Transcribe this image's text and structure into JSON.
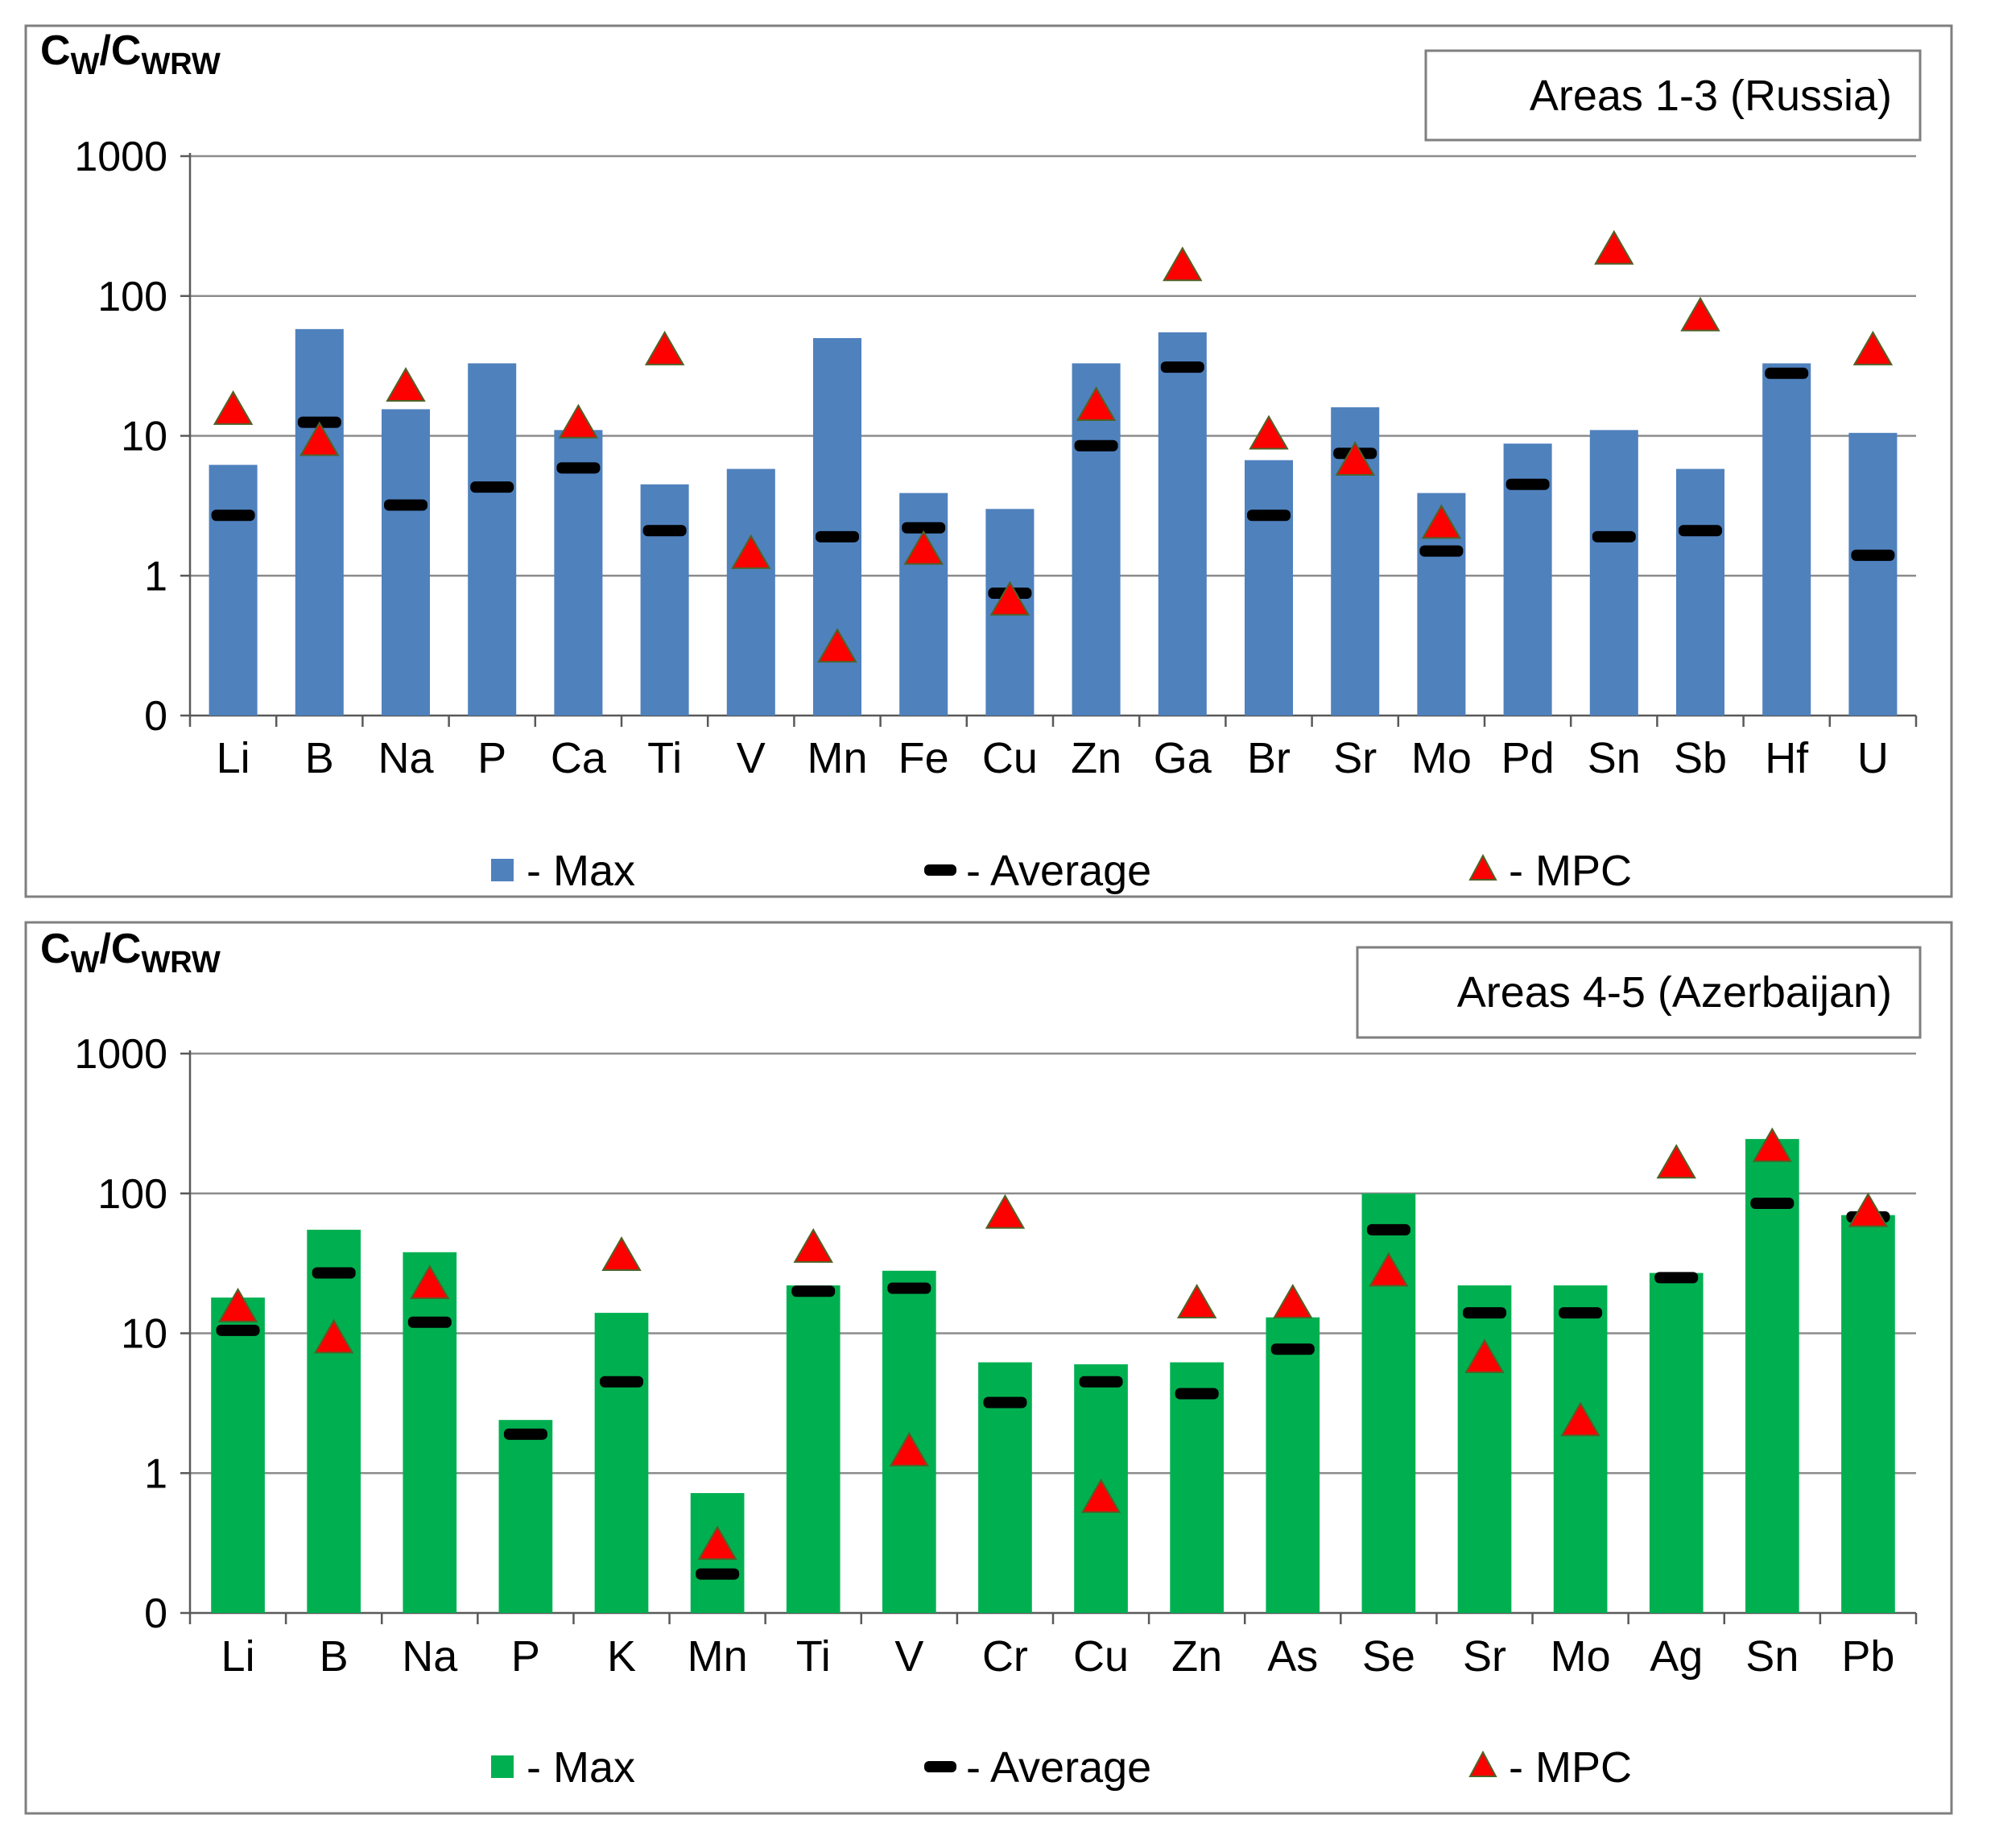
{
  "chart_data": [
    {
      "type": "bar",
      "title": "Areas 1-3 (Russia)",
      "ylabel_main": "C",
      "ylabel_sub1": "W",
      "ylabel_sep": "/C",
      "ylabel_sub2": "WRW",
      "yscale": "log",
      "ylim": [
        0.1,
        1000
      ],
      "yticks": [
        {
          "value": 1000,
          "label": "1000"
        },
        {
          "value": 100,
          "label": "100"
        },
        {
          "value": 10,
          "label": "10"
        },
        {
          "value": 1,
          "label": "1"
        },
        {
          "value": 0.1,
          "label": "0"
        }
      ],
      "categories": [
        "Li",
        "B",
        "Na",
        "P",
        "Ca",
        "Ti",
        "V",
        "Mn",
        "Fe",
        "Cu",
        "Zn",
        "Ga",
        "Br",
        "Sr",
        "Mo",
        "Pd",
        "Sn",
        "Sb",
        "Hf",
        "U"
      ],
      "series": [
        {
          "name": "Max",
          "kind": "bar",
          "color": "#4f81bd",
          "values": [
            6.2,
            58,
            15.5,
            33,
            11,
            4.5,
            5.8,
            50,
            3.9,
            3.0,
            33,
            55,
            6.7,
            16,
            3.9,
            8.8,
            11,
            5.8,
            33,
            10.5
          ]
        },
        {
          "name": "Average",
          "kind": "dash",
          "color": "#000000",
          "values": [
            2.7,
            12.5,
            3.2,
            4.3,
            5.9,
            2.1,
            null,
            1.9,
            2.2,
            0.75,
            8.5,
            31,
            2.7,
            7.5,
            1.5,
            4.5,
            1.9,
            2.1,
            28,
            1.4
          ]
        },
        {
          "name": "MPC",
          "kind": "triangle",
          "color": "#ff0000",
          "values": [
            15,
            9,
            22,
            null,
            12,
            40,
            1.4,
            0.3,
            1.5,
            0.65,
            16,
            160,
            10,
            6.5,
            2.3,
            null,
            210,
            70,
            null,
            40
          ]
        }
      ],
      "legend": [
        {
          "marker": "square",
          "label": "- Max"
        },
        {
          "marker": "dash",
          "label": "- Average"
        },
        {
          "marker": "triangle",
          "label": "- MPC"
        }
      ]
    },
    {
      "type": "bar",
      "title": "Areas 4-5 (Azerbaijan)",
      "ylabel_main": "C",
      "ylabel_sub1": "W",
      "ylabel_sep": "/C",
      "ylabel_sub2": "WRW",
      "yscale": "log",
      "ylim": [
        0.1,
        1000
      ],
      "yticks": [
        {
          "value": 1000,
          "label": "1000"
        },
        {
          "value": 100,
          "label": "100"
        },
        {
          "value": 10,
          "label": "10"
        },
        {
          "value": 1,
          "label": "1"
        },
        {
          "value": 0.1,
          "label": "0"
        }
      ],
      "categories": [
        "Li",
        "B",
        "Na",
        "P",
        "K",
        "Mn",
        "Ti",
        "V",
        "Cr",
        "Cu",
        "Zn",
        "As",
        "Se",
        "Sr",
        "Mo",
        "Ag",
        "Sn",
        "Pb"
      ],
      "series": [
        {
          "name": "Max",
          "kind": "bar",
          "color": "#00b050",
          "values": [
            18,
            55,
            38,
            2.4,
            14,
            0.72,
            22,
            28,
            6.2,
            6.0,
            6.2,
            13,
            100,
            22,
            22,
            27,
            245,
            70
          ]
        },
        {
          "name": "Average",
          "kind": "dash",
          "color": "#000000",
          "values": [
            10.5,
            27,
            12,
            1.9,
            4.5,
            0.19,
            20,
            21,
            3.2,
            4.5,
            3.7,
            7.7,
            55,
            14,
            14,
            25,
            85,
            68
          ]
        },
        {
          "name": "MPC",
          "kind": "triangle",
          "color": "#ff0000",
          "values": [
            15,
            9,
            22,
            null,
            35,
            0.3,
            40,
            1.4,
            70,
            0.65,
            16,
            16,
            27,
            6.5,
            2.3,
            160,
            210,
            72
          ]
        }
      ],
      "legend": [
        {
          "marker": "square",
          "label": "- Max"
        },
        {
          "marker": "dash",
          "label": "- Average"
        },
        {
          "marker": "triangle",
          "label": "- MPC"
        }
      ]
    }
  ]
}
